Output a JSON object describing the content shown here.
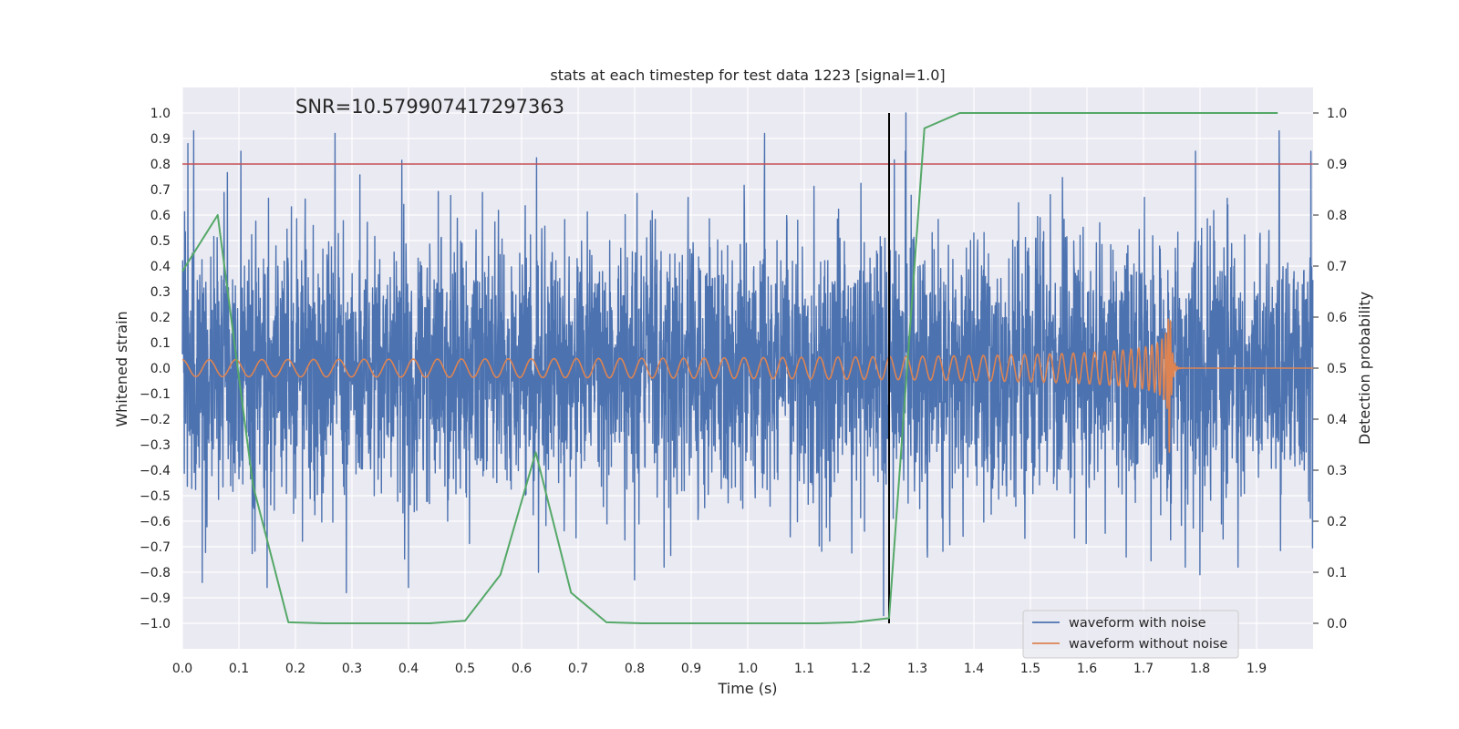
{
  "chart_data": {
    "type": "line",
    "title": "stats at each timestep for test data 1223 [signal=1.0]",
    "xlabel": "Time (s)",
    "ylabel": "Whitened strain",
    "y2label": "Detection probability",
    "annotation": "SNR=10.579907417297363",
    "xlim": [
      0.0,
      2.0
    ],
    "ylim": [
      -1.1,
      1.1
    ],
    "y2lim": [
      -0.05,
      1.05
    ],
    "xticks": [
      0.0,
      0.1,
      0.2,
      0.3,
      0.4,
      0.5,
      0.6,
      0.7,
      0.8,
      0.9,
      1.0,
      1.1,
      1.2,
      1.3,
      1.4,
      1.5,
      1.6,
      1.7,
      1.8,
      1.9
    ],
    "xtick_labels": [
      "0.0",
      "0.1",
      "0.2",
      "0.3",
      "0.4",
      "0.5",
      "0.6",
      "0.7",
      "0.8",
      "0.9",
      "1.0",
      "1.1",
      "1.2",
      "1.3",
      "1.4",
      "1.5",
      "1.6",
      "1.7",
      "1.8",
      "1.9"
    ],
    "yticks": [
      1.0,
      0.9,
      0.8,
      0.7,
      0.6,
      0.5,
      0.4,
      0.3,
      0.2,
      0.1,
      0.0,
      -0.1,
      -0.2,
      -0.3,
      -0.4,
      -0.5,
      -0.6,
      -0.7,
      -0.8,
      -0.9,
      -1.0
    ],
    "ytick_labels": [
      "1.0",
      "0.9",
      "0.8",
      "0.7",
      "0.6",
      "0.5",
      "0.4",
      "0.3",
      "0.2",
      "0.1",
      "0.0",
      "−0.1",
      "−0.2",
      "−0.3",
      "−0.4",
      "−0.5",
      "−0.6",
      "−0.7",
      "−0.8",
      "−0.9",
      "−1.0"
    ],
    "y2ticks": [
      1.0,
      0.9,
      0.8,
      0.7,
      0.6,
      0.5,
      0.4,
      0.3,
      0.2,
      0.1,
      0.0
    ],
    "y2tick_labels": [
      "1.0",
      "0.9",
      "0.8",
      "0.7",
      "0.6",
      "0.5",
      "0.4",
      "0.3",
      "0.2",
      "0.1",
      "0.0"
    ],
    "grid": true,
    "legend_position": "bottom-right",
    "threshold_line": {
      "y": 0.8,
      "color": "#c44e52"
    },
    "vertical_line": {
      "x": 1.25,
      "y_from": -1.0,
      "y_to": 1.0,
      "color": "#000000"
    },
    "series": [
      {
        "name": "waveform with noise",
        "color": "#4c72b0",
        "kind": "noise",
        "sample_rate": 2048,
        "duration": 2.0,
        "std": 0.26,
        "peaks": [
          {
            "x": 0.01,
            "y": 0.88
          },
          {
            "x": 0.02,
            "y": 0.93
          },
          {
            "x": 0.27,
            "y": 0.92
          },
          {
            "x": 1.03,
            "y": 0.92
          },
          {
            "x": 1.25,
            "y": 0.82
          },
          {
            "x": 1.28,
            "y": 1.0
          },
          {
            "x": 1.94,
            "y": 0.93
          },
          {
            "x": 0.035,
            "y": -0.84
          },
          {
            "x": 0.15,
            "y": -0.86
          },
          {
            "x": 0.29,
            "y": -0.88
          },
          {
            "x": 0.4,
            "y": -0.86
          },
          {
            "x": 0.8,
            "y": -0.83
          },
          {
            "x": 1.24,
            "y": -0.97
          },
          {
            "x": 1.8,
            "y": -0.81
          },
          {
            "x": 0.63,
            "y": -0.8
          }
        ]
      },
      {
        "name": "waveform without noise",
        "color": "#dd8452",
        "kind": "chirp",
        "duration": 2.0,
        "merger_time": 1.745,
        "base_amplitude": 0.033,
        "peak_amplitude": 0.4,
        "start_frequency": 21,
        "merger_frequency": 250
      },
      {
        "name": "detection probability",
        "color": "#55a868",
        "axis": "right",
        "x": [
          0.0,
          0.0625,
          0.125,
          0.1875,
          0.25,
          0.3125,
          0.375,
          0.4375,
          0.5,
          0.5625,
          0.625,
          0.6875,
          0.75,
          0.8125,
          0.875,
          0.9375,
          1.0,
          1.0625,
          1.125,
          1.1875,
          1.25,
          1.3125,
          1.375,
          1.4375,
          1.5,
          1.5625,
          1.625,
          1.6875,
          1.75,
          1.8125,
          1.875,
          1.9375
        ],
        "y": [
          0.69,
          0.8,
          0.27,
          0.002,
          0.0,
          0.0,
          0.0,
          0.0,
          0.005,
          0.095,
          0.335,
          0.06,
          0.002,
          0.0,
          0.0,
          0.0,
          0.0,
          0.0,
          0.0,
          0.002,
          0.01,
          0.97,
          1.0,
          1.0,
          1.0,
          1.0,
          1.0,
          1.0,
          1.0,
          1.0,
          1.0,
          1.0
        ]
      }
    ]
  }
}
